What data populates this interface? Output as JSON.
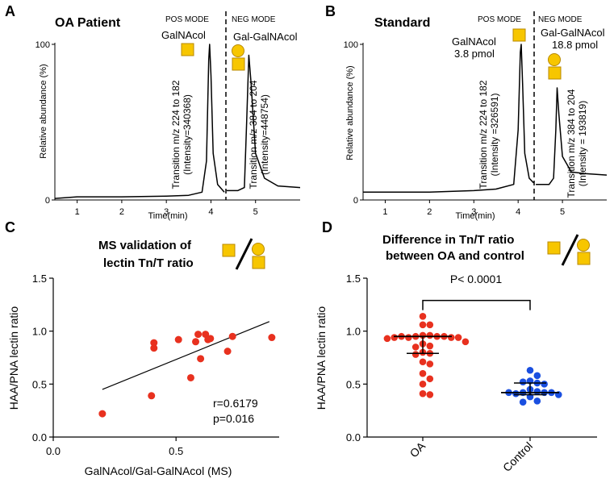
{
  "colors": {
    "red": "#e8311f",
    "blue": "#1a4fe0",
    "glycan_yellow": "#f7c600",
    "glycan_stroke": "#b88a00",
    "axis": "#000000"
  },
  "panels": {
    "A": {
      "letter": "A",
      "title": "OA Patient",
      "pos_mode": "POS MODE",
      "neg_mode": "NEG MODE",
      "glycan1_label": "GalNAcol",
      "glycan2_label": "Gal-GalNAcol",
      "ylabel": "Relative abundance (%)",
      "xlabel": "Time(min)",
      "transition1_line1": "Transition m/z 224 to 182",
      "transition1_line2": "(Intensity=340368)",
      "transition2_line1": "Transition m/z 384 to 204",
      "transition2_line2": "(Intensity=448754)"
    },
    "B": {
      "letter": "B",
      "title": "Standard",
      "pos_mode": "POS MODE",
      "neg_mode": "NEG MODE",
      "glycan1_label": "GalNAcol",
      "glycan1_amount": "3.8 pmol",
      "glycan2_label": "Gal-GalNAcol",
      "glycan2_amount": "18.8 pmol",
      "ylabel": "Relative abundance (%)",
      "xlabel": "Time(min)",
      "transition1_line1": "Transition m/z 224 to 182",
      "transition1_line2": "(Intensity =326591)",
      "transition2_line1": "Transition m/z 384 to 204",
      "transition2_line2": "(Intensity = 193819)"
    },
    "C": {
      "letter": "C",
      "title_line1": "MS validation of",
      "title_line2": "lectin Tn/T ratio",
      "r_text": "r=0.6179",
      "p_text": "p=0.016"
    },
    "D": {
      "letter": "D",
      "title_line1": "Difference in Tn/T ratio",
      "title_line2": "between OA and control",
      "pvalue_text": "P< 0.0001"
    }
  },
  "chart_data": [
    {
      "id": "A",
      "type": "line",
      "title": "OA Patient",
      "xlabel": "Time(min)",
      "ylabel": "Relative abundance (%)",
      "xticks": [
        1,
        2,
        3,
        4,
        5
      ],
      "yticks": [
        0,
        100
      ],
      "xlim": [
        0.5,
        6.0
      ],
      "ylim": [
        0,
        100
      ],
      "series": [
        {
          "name": "Transition m/z 224 to 182",
          "mode": "POS MODE",
          "peak_time": 3.97,
          "peak_value": 100,
          "points": [
            [
              0.5,
              1
            ],
            [
              1.0,
              2
            ],
            [
              2.0,
              2
            ],
            [
              3.0,
              2.5
            ],
            [
              3.5,
              3
            ],
            [
              3.8,
              5
            ],
            [
              3.9,
              25
            ],
            [
              3.95,
              90
            ],
            [
              3.97,
              100
            ],
            [
              4.0,
              80
            ],
            [
              4.05,
              30
            ],
            [
              4.15,
              10
            ],
            [
              4.3,
              5
            ]
          ]
        },
        {
          "name": "Transition m/z 384 to 204",
          "mode": "NEG MODE",
          "peak_time": 4.85,
          "peak_value": 93,
          "points": [
            [
              4.35,
              6
            ],
            [
              4.6,
              6
            ],
            [
              4.75,
              8
            ],
            [
              4.8,
              50
            ],
            [
              4.85,
              93
            ],
            [
              4.9,
              75
            ],
            [
              5.0,
              30
            ],
            [
              5.2,
              14
            ],
            [
              5.5,
              9
            ],
            [
              6.0,
              8
            ]
          ]
        }
      ]
    },
    {
      "id": "B",
      "type": "line",
      "title": "Standard",
      "xlabel": "Time(min)",
      "ylabel": "Relative abundance (%)",
      "xticks": [
        1,
        2,
        3,
        4,
        5
      ],
      "yticks": [
        0,
        100
      ],
      "xlim": [
        0.5,
        6.0
      ],
      "ylim": [
        0,
        100
      ],
      "series": [
        {
          "name": "Transition m/z 224 to 182",
          "mode": "POS MODE",
          "peak_time": 4.07,
          "peak_value": 100,
          "points": [
            [
              0.5,
              5
            ],
            [
              1.0,
              5
            ],
            [
              2.0,
              5
            ],
            [
              3.0,
              6
            ],
            [
              3.5,
              7
            ],
            [
              3.9,
              10
            ],
            [
              4.0,
              45
            ],
            [
              4.05,
              95
            ],
            [
              4.07,
              100
            ],
            [
              4.1,
              75
            ],
            [
              4.15,
              30
            ],
            [
              4.25,
              14
            ],
            [
              4.35,
              11
            ]
          ]
        },
        {
          "name": "Transition m/z 384 to 204",
          "mode": "NEG MODE",
          "peak_time": 4.88,
          "peak_value": 72,
          "points": [
            [
              4.4,
              10
            ],
            [
              4.7,
              10
            ],
            [
              4.8,
              14
            ],
            [
              4.85,
              45
            ],
            [
              4.88,
              72
            ],
            [
              4.92,
              55
            ],
            [
              5.0,
              28
            ],
            [
              5.2,
              18
            ],
            [
              5.5,
              17
            ],
            [
              6.0,
              16
            ]
          ]
        }
      ]
    },
    {
      "id": "C",
      "type": "scatter",
      "xlabel": "GalNAcol/Gal-GalNAcol (MS)",
      "ylabel": "HAA/PNA lectin ratio",
      "xlim": [
        0.0,
        0.92
      ],
      "ylim": [
        0.0,
        1.5
      ],
      "xticks": [
        "0.0",
        "0.5"
      ],
      "xtick_values": [
        0.0,
        0.5
      ],
      "yticks": [
        "0.0",
        "0.5",
        "1.0",
        "1.5"
      ],
      "ytick_values": [
        0.0,
        0.5,
        1.0,
        1.5
      ],
      "points": [
        [
          0.2,
          0.22
        ],
        [
          0.4,
          0.39
        ],
        [
          0.41,
          0.84
        ],
        [
          0.41,
          0.89
        ],
        [
          0.51,
          0.92
        ],
        [
          0.56,
          0.56
        ],
        [
          0.58,
          0.9
        ],
        [
          0.59,
          0.97
        ],
        [
          0.6,
          0.74
        ],
        [
          0.62,
          0.97
        ],
        [
          0.63,
          0.92
        ],
        [
          0.64,
          0.93
        ],
        [
          0.71,
          0.81
        ],
        [
          0.73,
          0.95
        ],
        [
          0.89,
          0.94
        ]
      ],
      "regression": {
        "x": [
          0.2,
          0.88
        ],
        "y": [
          0.45,
          1.09
        ]
      },
      "r": 0.6179,
      "p": 0.016
    },
    {
      "id": "D",
      "type": "scatter",
      "ylabel": "HAA/PNA lectin ratio",
      "categories": [
        "OA",
        "Control"
      ],
      "ylim": [
        0.0,
        1.5
      ],
      "yticks": [
        "0.0",
        "0.5",
        "1.0",
        "1.5"
      ],
      "ytick_values": [
        0.0,
        0.5,
        1.0,
        1.5
      ],
      "series": [
        {
          "name": "OA",
          "color": "#e8311f",
          "median": 0.95,
          "q1": 0.79,
          "q3": 0.95,
          "values": [
            1.14,
            1.06,
            1.06,
            0.96,
            0.96,
            0.95,
            0.95,
            0.95,
            0.95,
            0.94,
            0.94,
            0.94,
            0.94,
            0.93,
            0.9,
            0.88,
            0.86,
            0.85,
            0.8,
            0.79,
            0.78,
            0.71,
            0.69,
            0.6,
            0.55,
            0.5,
            0.4,
            0.41
          ]
        },
        {
          "name": "Control",
          "color": "#1a4fe0",
          "median": 0.42,
          "q1": 0.4,
          "q3": 0.51,
          "values": [
            0.63,
            0.58,
            0.53,
            0.52,
            0.51,
            0.5,
            0.45,
            0.43,
            0.42,
            0.42,
            0.42,
            0.42,
            0.41,
            0.4,
            0.38,
            0.34,
            0.33
          ]
        }
      ],
      "pvalue": "P< 0.0001"
    }
  ]
}
